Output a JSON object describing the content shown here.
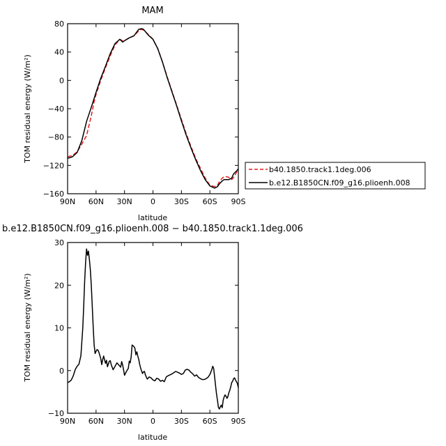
{
  "chart_data": [
    {
      "type": "line",
      "title": "MAM",
      "xlabel": "latitude",
      "ylabel": "TOM residual energy  (W/m²)",
      "xlim": [
        90,
        -90
      ],
      "ylim": [
        -160,
        80
      ],
      "x_ticks": [
        90,
        60,
        30,
        0,
        -30,
        -60,
        -90
      ],
      "x_tick_labels": [
        "90N",
        "60N",
        "30N",
        "0",
        "30S",
        "60S",
        "90S"
      ],
      "y_ticks": [
        80,
        40,
        0,
        -40,
        -80,
        -120,
        -160
      ],
      "y_tick_labels": [
        "80",
        "40",
        "0",
        "−40",
        "−80",
        "−120",
        "−160"
      ],
      "legend_position": "right of plot, bottom",
      "series": [
        {
          "name": "b40.1850.track1.1deg.006",
          "color": "#e41a1c",
          "dash": "dashed",
          "x": [
            90,
            85,
            80,
            75,
            70,
            65,
            62,
            60,
            55,
            50,
            45,
            40,
            35,
            32,
            30,
            25,
            20,
            15,
            12,
            10,
            5,
            0,
            -5,
            -10,
            -15,
            -20,
            -25,
            -30,
            -35,
            -40,
            -45,
            -50,
            -55,
            -60,
            -65,
            -68,
            -70,
            -73,
            -75,
            -78,
            -80,
            -83,
            -85,
            -88,
            -90
          ],
          "y": [
            -108,
            -106,
            -101,
            -90,
            -78,
            -50,
            -30,
            -20,
            0,
            18,
            35,
            50,
            58,
            56,
            56,
            60,
            63,
            70,
            72,
            71,
            65,
            58,
            45,
            26,
            5,
            -15,
            -35,
            -55,
            -75,
            -93,
            -110,
            -124,
            -138,
            -148,
            -150,
            -148,
            -143,
            -138,
            -136,
            -136,
            -137,
            -140,
            -137,
            -130,
            -126
          ]
        },
        {
          "name": "b.e12.B1850CN.f09_g16.plioenh.008",
          "color": "#000000",
          "dash": "solid",
          "x": [
            90,
            85,
            80,
            75,
            70,
            68,
            65,
            60,
            55,
            50,
            45,
            40,
            35,
            32,
            30,
            25,
            20,
            15,
            12,
            10,
            5,
            0,
            -5,
            -10,
            -15,
            -20,
            -25,
            -30,
            -35,
            -40,
            -45,
            -50,
            -55,
            -60,
            -65,
            -68,
            -70,
            -73,
            -75,
            -78,
            -80,
            -83,
            -85,
            -88,
            -90
          ],
          "y": [
            -110,
            -108,
            -102,
            -85,
            -58,
            -50,
            -38,
            -17,
            3,
            20,
            38,
            52,
            58,
            54,
            56,
            60,
            63,
            72,
            73,
            72,
            64,
            58,
            45,
            26,
            4,
            -16,
            -36,
            -57,
            -77,
            -95,
            -112,
            -127,
            -140,
            -149,
            -152,
            -150,
            -146,
            -142,
            -140,
            -140,
            -140,
            -138,
            -132,
            -128,
            -125
          ]
        }
      ]
    },
    {
      "type": "line",
      "title": "b.e12.B1850CN.f09_g16.plioenh.008 − b40.1850.track1.1deg.006",
      "xlabel": "latitude",
      "ylabel": "TOM residual energy  (W/m²)",
      "xlim": [
        90,
        -90
      ],
      "ylim": [
        -10,
        30
      ],
      "x_ticks": [
        90,
        60,
        30,
        0,
        -30,
        -60,
        -90
      ],
      "x_tick_labels": [
        "90N",
        "60N",
        "30N",
        "0",
        "30S",
        "60S",
        "90S"
      ],
      "y_ticks": [
        30,
        20,
        10,
        0,
        -10
      ],
      "y_tick_labels": [
        "30",
        "20",
        "10",
        "0",
        "−10"
      ],
      "series": [
        {
          "color": "#000000",
          "x": [
            90,
            88,
            86,
            84,
            82,
            80,
            78,
            76,
            74,
            73,
            72,
            71,
            70,
            69,
            68,
            67,
            66,
            65,
            64,
            63,
            62,
            61,
            60,
            59,
            58,
            57,
            55,
            54,
            53,
            52,
            51,
            50,
            49,
            48,
            46,
            45,
            44,
            42,
            40,
            38,
            36,
            34,
            33,
            32,
            31,
            30,
            28,
            26,
            25,
            24,
            23,
            22,
            20,
            19,
            18,
            17,
            16,
            15,
            14,
            13,
            12,
            11,
            10,
            9,
            8,
            6,
            4,
            2,
            0,
            -2,
            -4,
            -6,
            -8,
            -10,
            -12,
            -14,
            -16,
            -18,
            -20,
            -22,
            -24,
            -26,
            -28,
            -30,
            -32,
            -34,
            -36,
            -38,
            -40,
            -42,
            -44,
            -46,
            -48,
            -50,
            -52,
            -54,
            -56,
            -58,
            -60,
            -62,
            -63,
            -64,
            -65,
            -66,
            -67,
            -68,
            -69,
            -70,
            -71,
            -72,
            -73,
            -74,
            -75,
            -76,
            -77,
            -78,
            -79,
            -80,
            -81,
            -82,
            -83,
            -84,
            -85,
            -86,
            -87,
            -88,
            -89,
            -90
          ],
          "y": [
            -2.8,
            -2.6,
            -2.2,
            -1.2,
            0.2,
            1.0,
            1.5,
            3.5,
            10.0,
            15.0,
            21.0,
            25.5,
            28.5,
            27.0,
            28.0,
            26.0,
            23.5,
            20.0,
            15.0,
            10.0,
            6.0,
            4.0,
            4.5,
            4.9,
            4.8,
            4.3,
            2.8,
            1.4,
            2.6,
            3.4,
            2.5,
            1.7,
            2.4,
            0.9,
            2.2,
            2.3,
            1.4,
            0.2,
            1.0,
            1.8,
            1.3,
            0.8,
            2.1,
            1.4,
            0.2,
            -1.1,
            -0.2,
            0.5,
            2.2,
            1.8,
            3.2,
            6.0,
            5.6,
            5.2,
            3.7,
            4.4,
            3.4,
            2.6,
            1.5,
            0.6,
            -0.1,
            -0.7,
            -0.3,
            -0.2,
            -1.0,
            -2.0,
            -1.5,
            -1.7,
            -2.2,
            -2.4,
            -1.8,
            -2.0,
            -2.5,
            -2.3,
            -2.6,
            -1.5,
            -1.2,
            -1.0,
            -0.8,
            -0.5,
            -0.2,
            -0.4,
            -0.6,
            -0.9,
            -0.7,
            0.1,
            0.3,
            0.1,
            -0.4,
            -0.8,
            -1.3,
            -1.0,
            -1.6,
            -1.9,
            -2.1,
            -2.1,
            -1.9,
            -1.6,
            -0.9,
            0.2,
            1.0,
            0.5,
            -1.5,
            -3.5,
            -5.5,
            -7.0,
            -8.6,
            -9.0,
            -8.5,
            -8.1,
            -8.7,
            -7.0,
            -6.2,
            -5.7,
            -6.0,
            -6.5,
            -6.1,
            -5.2,
            -4.6,
            -3.8,
            -2.8,
            -2.5,
            -1.9,
            -1.7,
            -2.2,
            -2.6,
            -3.0,
            -4.0
          ]
        }
      ]
    }
  ]
}
